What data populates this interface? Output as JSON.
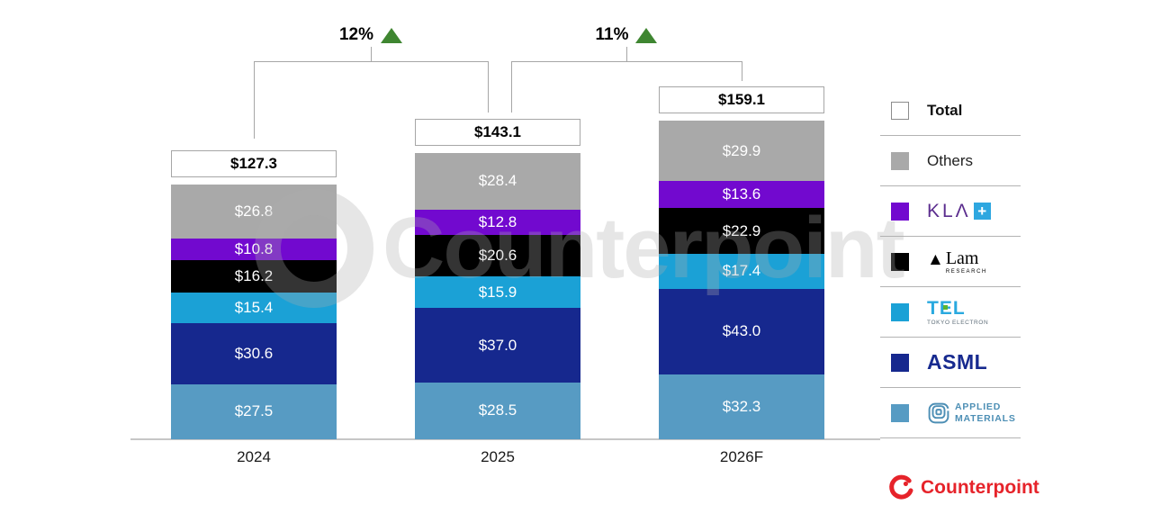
{
  "chart_data": {
    "type": "bar",
    "stacked": true,
    "title": "",
    "categories": [
      "2024",
      "2025",
      "2026F"
    ],
    "series": [
      {
        "name": "Applied Materials",
        "color": "#579bc3",
        "values": [
          27.5,
          28.5,
          32.3
        ]
      },
      {
        "name": "ASML",
        "color": "#16288e",
        "values": [
          30.6,
          37.0,
          43.0
        ]
      },
      {
        "name": "TEL",
        "color": "#1ba1d6",
        "values": [
          15.4,
          15.9,
          17.4
        ]
      },
      {
        "name": "Lam Research",
        "color": "#000000",
        "values": [
          16.2,
          20.6,
          22.9
        ]
      },
      {
        "name": "KLA",
        "color": "#7209cf",
        "values": [
          10.8,
          12.8,
          13.6
        ]
      },
      {
        "name": "Others",
        "color": "#a9a9a9",
        "values": [
          26.8,
          28.4,
          29.9
        ]
      }
    ],
    "totals": [
      127.3,
      143.1,
      159.1
    ],
    "total_labels": [
      "$127.3",
      "$143.1",
      "$159.1"
    ],
    "value_prefix": "$",
    "growth": [
      {
        "label": "12%"
      },
      {
        "label": "11%"
      }
    ],
    "legend_position": "right",
    "grid": false
  },
  "legend": {
    "items": [
      {
        "label": "Total",
        "color": "#ffffff"
      },
      {
        "label": "Others",
        "color": "#a9a9a9"
      },
      {
        "label": "KLA",
        "color": "#7209cf",
        "mark": "KLΛ",
        "plus": "+"
      },
      {
        "label": "Lam Research",
        "color": "#000000",
        "tri": "▲",
        "word": "Lam",
        "sub": "RESEARCH"
      },
      {
        "label": "TEL",
        "color": "#1ba1d6",
        "word_t": "T",
        "word_e": "E",
        "word_l": "L",
        "sub": "TOKYO ELECTRON"
      },
      {
        "label": "ASML",
        "color": "#16288e",
        "word": "ASML"
      },
      {
        "label": "Applied Materials",
        "color": "#579bc3",
        "line1": "APPLIED",
        "line2": "MATERIALS"
      }
    ]
  },
  "watermark": {
    "text": "Counterpoint"
  },
  "footer": {
    "brand": "Counterpoint",
    "color": "#e6232a"
  },
  "colors": {
    "growth_triangle": "#3f8631",
    "bracket_line": "#a6a6a6",
    "axis_line": "#c6c6c6",
    "kla_letters": "#5b2d8e",
    "kla_plus_box": "#2ea7e0",
    "tel_green": "#5cb531",
    "asml_navy": "#172a8f",
    "amat_blue": "#4d8fb5",
    "counterpoint_red": "#e6232a"
  }
}
